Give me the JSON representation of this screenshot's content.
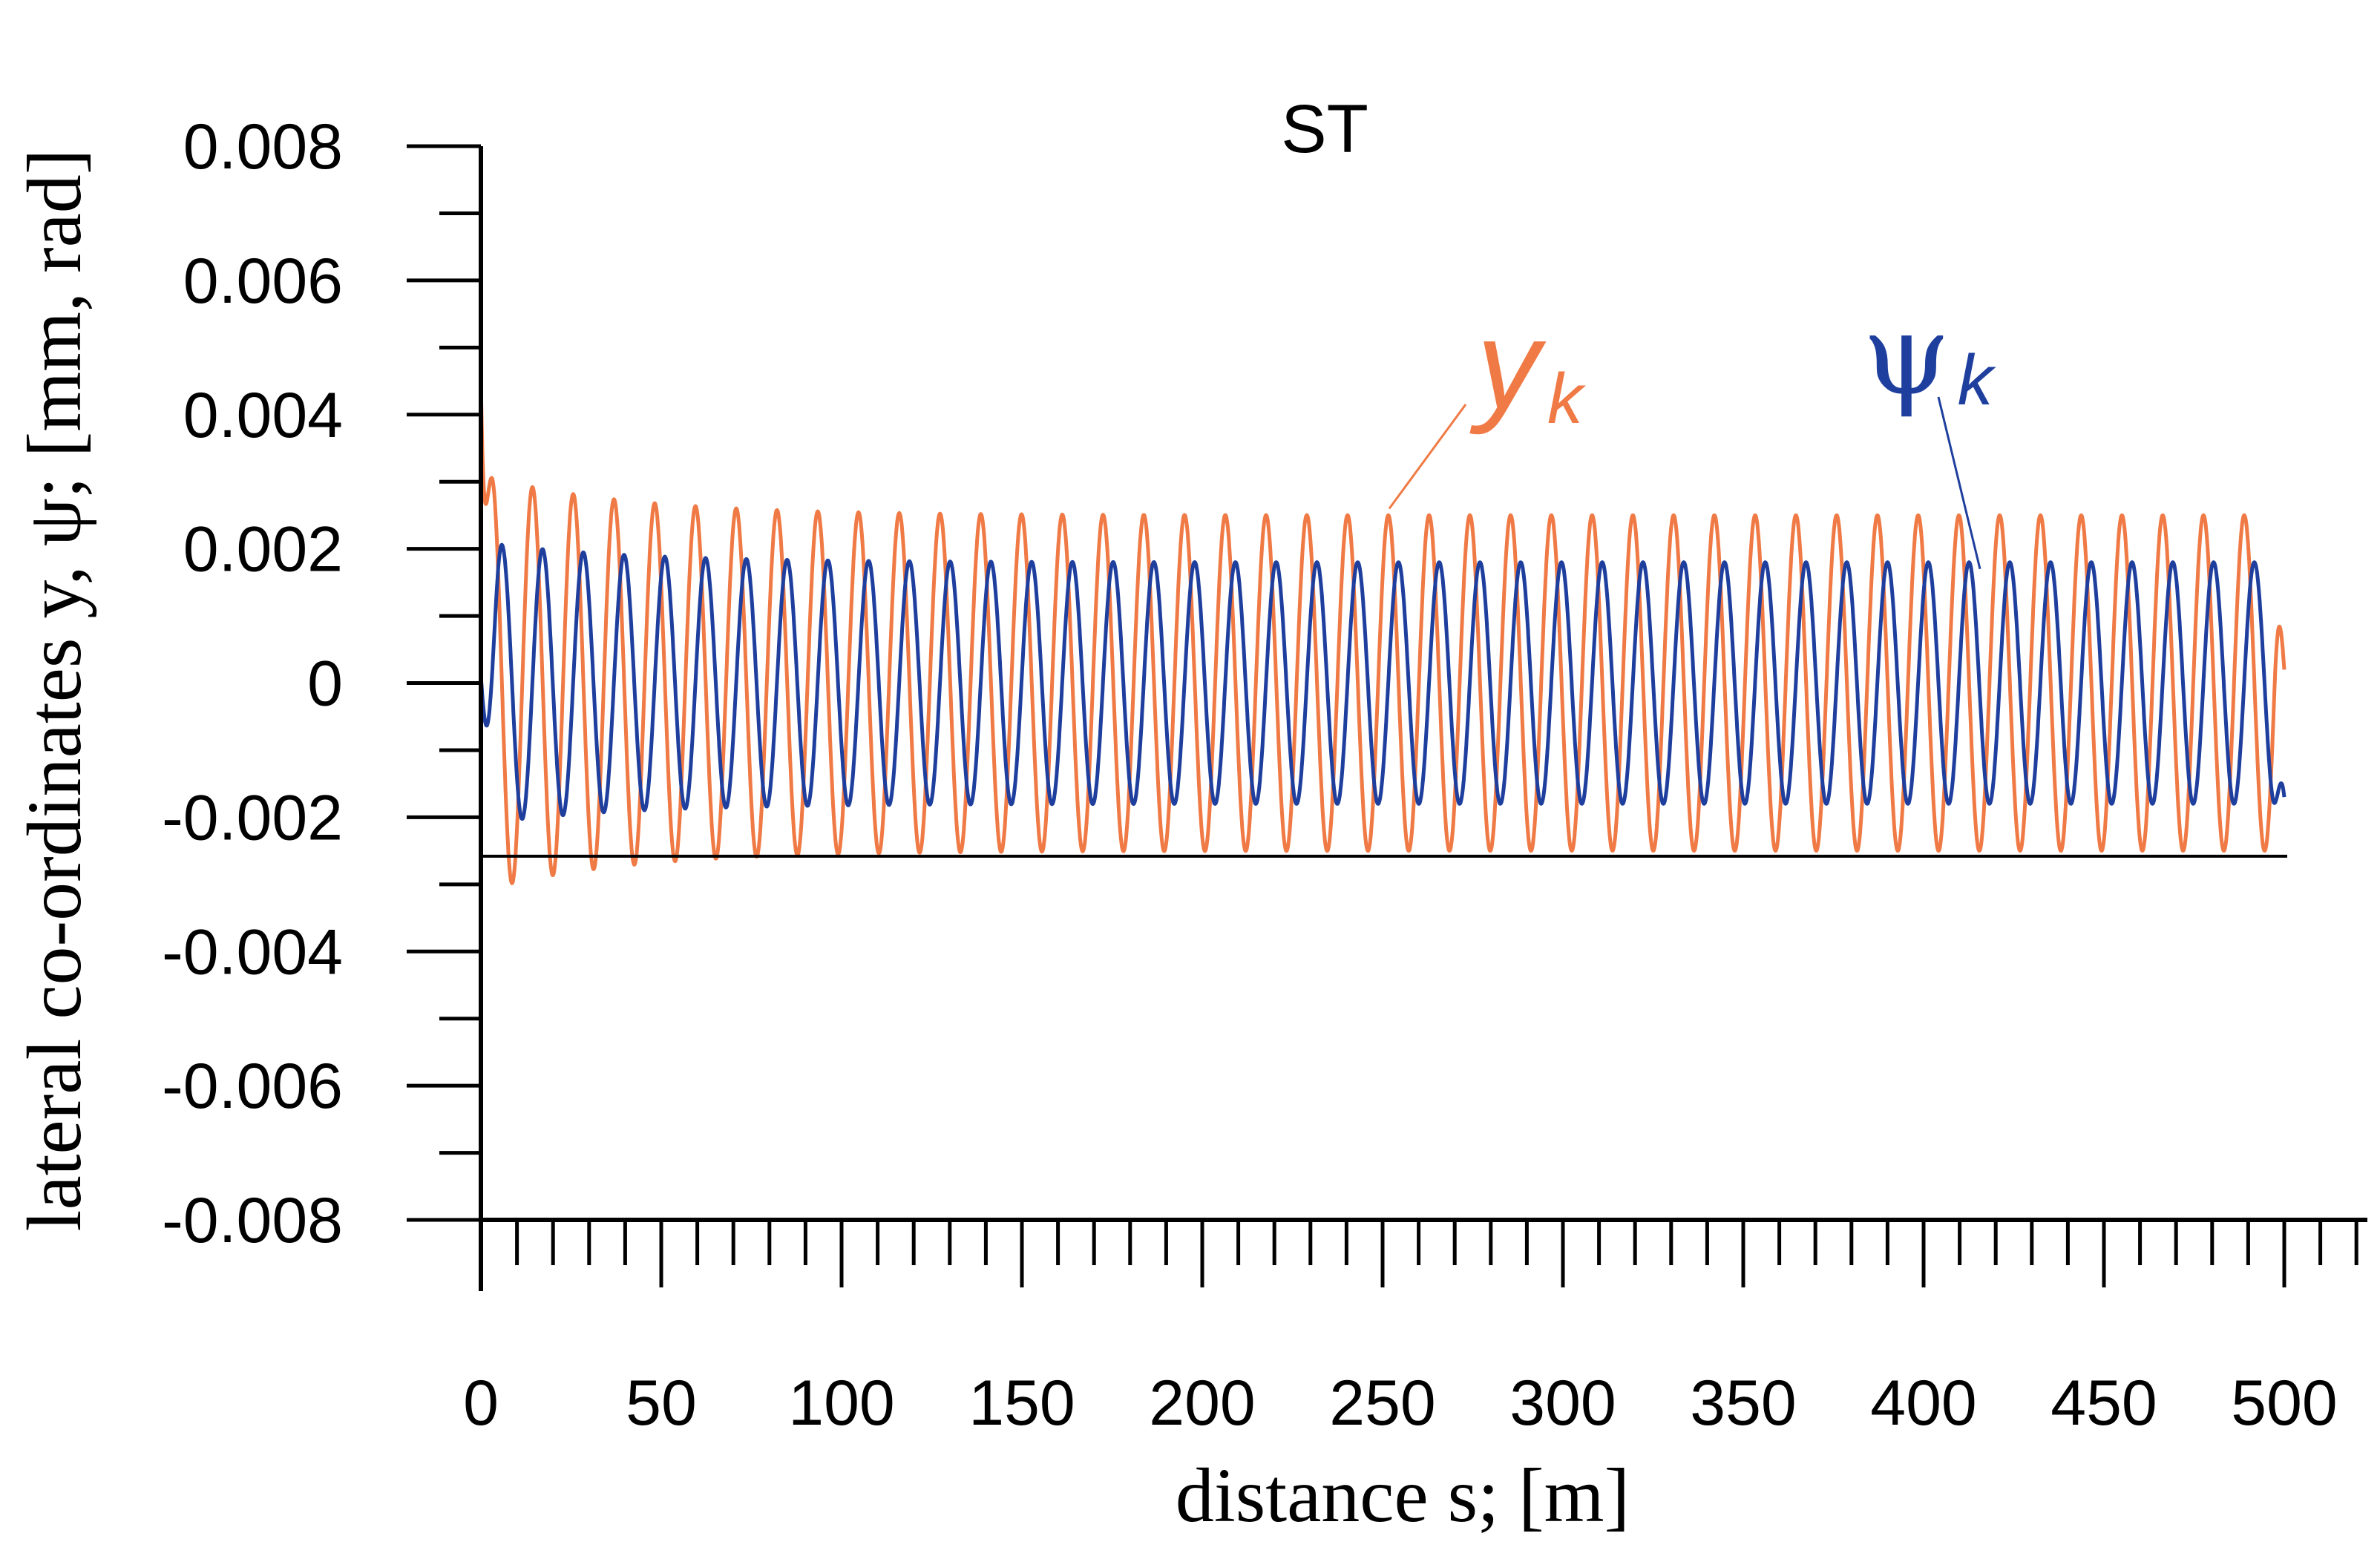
{
  "chart_data": {
    "type": "line",
    "title": "ST",
    "xlabel": "distance s; [m]",
    "ylabel": "lateral co-ordinates y, ψ; [mm, rad]",
    "xlim": [
      0,
      500
    ],
    "ylim": [
      -0.008,
      0.008
    ],
    "x_ticks": [
      0,
      50,
      100,
      150,
      200,
      250,
      300,
      350,
      400,
      450,
      500
    ],
    "x_tick_labels": [
      "0",
      "50",
      "100",
      "150",
      "200",
      "250",
      "300",
      "350",
      "400",
      "450",
      "500"
    ],
    "y_ticks": [
      0.008,
      0.006,
      0.004,
      0.002,
      0,
      -0.002,
      -0.004,
      -0.006,
      -0.008
    ],
    "y_tick_labels": [
      "0.008",
      "0.006",
      "0.004",
      "0.002",
      "0",
      "-0.002",
      "-0.004",
      "-0.006",
      "-0.008"
    ],
    "reference_line_y": -0.00258,
    "series": [
      {
        "name": "y_k",
        "label_main": "y",
        "label_sub": "k",
        "color": "#f07a45",
        "start_value": 0.0045,
        "period_m": 11.3,
        "phase_peak_m": 3.0,
        "amplitude_initial": 0.0031,
        "amplitude_final": 0.0025,
        "offset": 0.0,
        "end_value": 0.0002
      },
      {
        "name": "psi_k",
        "label_main": "ψ",
        "label_sub": "k",
        "color": "#1f3f9e",
        "start_value": 0.0001,
        "period_m": 11.3,
        "phase_peak_m": 5.8,
        "amplitude_initial": 0.0021,
        "amplitude_final": 0.0018,
        "offset": 0.0,
        "end_value": -0.0017
      }
    ]
  }
}
